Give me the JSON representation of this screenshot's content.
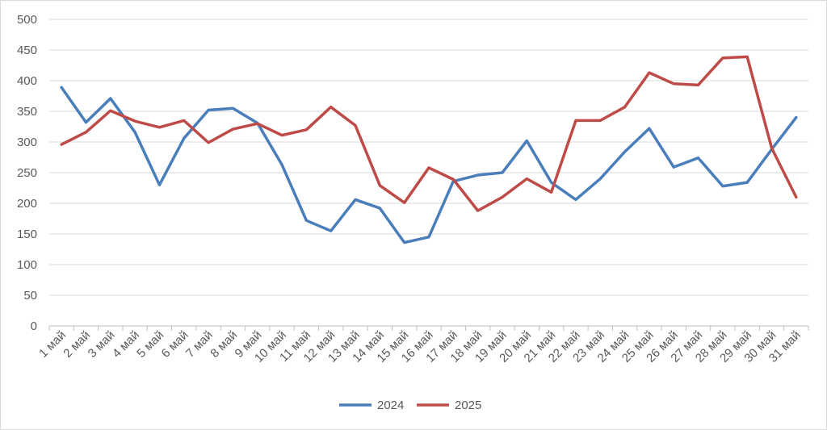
{
  "chart_data": {
    "type": "line",
    "title": "",
    "xlabel": "",
    "ylabel": "",
    "ylim": [
      0,
      500
    ],
    "yticks": [
      0,
      50,
      100,
      150,
      200,
      250,
      300,
      350,
      400,
      450,
      500
    ],
    "grid": true,
    "legend_position": "bottom",
    "categories": [
      "1 май",
      "2 май",
      "3 май",
      "4 май",
      "5 май",
      "6 май",
      "7 май",
      "8 май",
      "9 май",
      "10 май",
      "11 май",
      "12 май",
      "13 май",
      "14 май",
      "15 май",
      "16 май",
      "17 май",
      "18 май",
      "19 май",
      "20 май",
      "21 май",
      "22 май",
      "23 май",
      "24 май",
      "25 май",
      "26 май",
      "27 май",
      "28 май",
      "29 май",
      "30 май",
      "31 май"
    ],
    "series": [
      {
        "name": "2024",
        "color": "#4a7ebb",
        "values": [
          389,
          332,
          371,
          316,
          230,
          306,
          352,
          355,
          331,
          263,
          172,
          155,
          206,
          192,
          136,
          145,
          236,
          246,
          250,
          302,
          234,
          206,
          240,
          284,
          322,
          259,
          274,
          228,
          234,
          288,
          340
        ]
      },
      {
        "name": "2025",
        "color": "#be4b48",
        "values": [
          296,
          316,
          351,
          334,
          324,
          335,
          299,
          321,
          330,
          311,
          320,
          357,
          327,
          229,
          201,
          258,
          239,
          188,
          210,
          240,
          218,
          335,
          335,
          357,
          413,
          395,
          393,
          437,
          439,
          290,
          210
        ]
      }
    ]
  }
}
